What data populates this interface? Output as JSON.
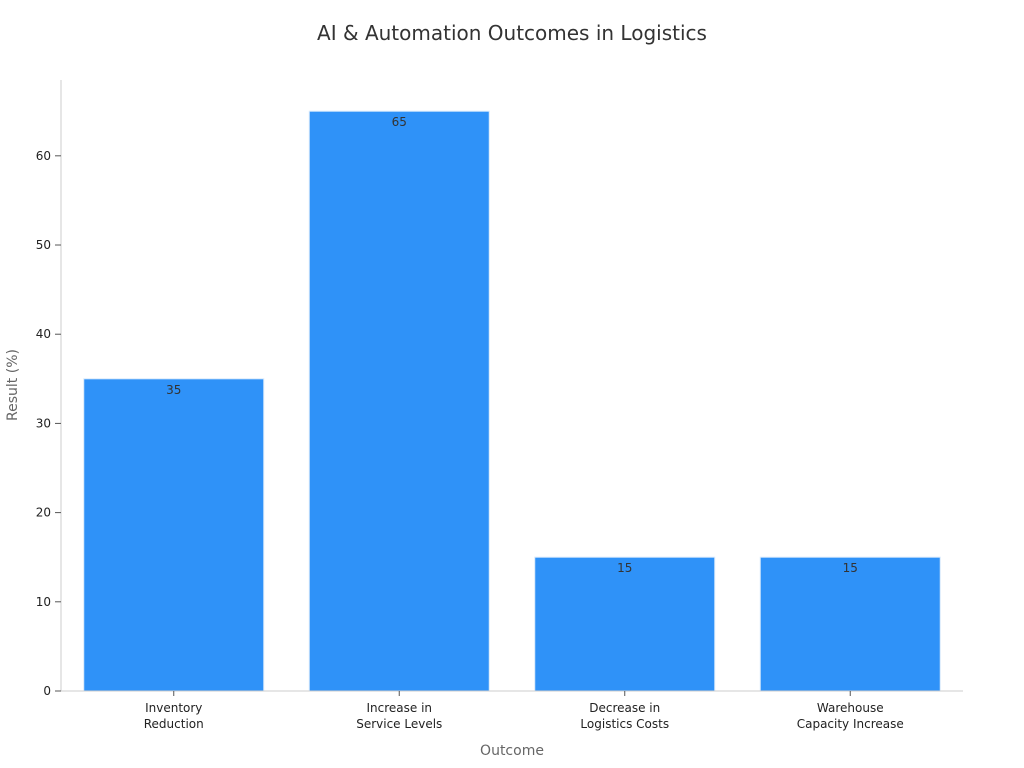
{
  "chart_data": {
    "type": "bar",
    "title": "AI & Automation Outcomes in Logistics",
    "xlabel": "Outcome",
    "ylabel": "Result (%)",
    "categories": [
      [
        "Inventory",
        "Reduction"
      ],
      [
        "Increase in",
        "Service Levels"
      ],
      [
        "Decrease in",
        "Logistics Costs"
      ],
      [
        "Warehouse",
        "Capacity Increase"
      ]
    ],
    "values": [
      35,
      65,
      15,
      15
    ],
    "data_labels": [
      "35",
      "65",
      "15",
      "15"
    ],
    "yticks": [
      0,
      10,
      20,
      30,
      40,
      50,
      60
    ],
    "ylim": [
      0,
      68.5
    ],
    "grid": false,
    "legend": "none",
    "bar_color": "#2f92f8",
    "bar_edge_color": "#d9eafc"
  }
}
